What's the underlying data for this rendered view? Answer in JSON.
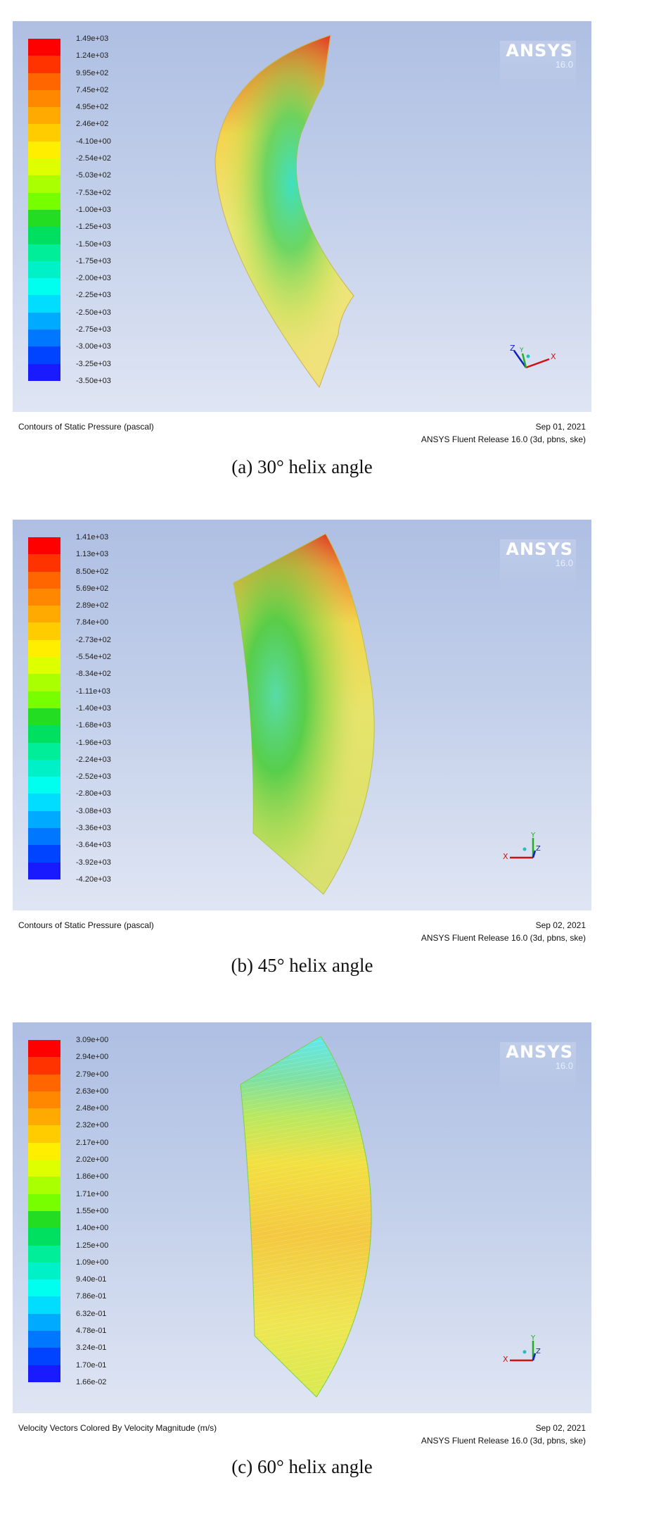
{
  "brand": {
    "name": "ANSYS",
    "version": "16.0"
  },
  "legend_colors": [
    "#ff0000",
    "#ff3300",
    "#ff6600",
    "#ff8800",
    "#ffaa00",
    "#ffcc00",
    "#ffee00",
    "#ddff00",
    "#aaff00",
    "#77ff00",
    "#22dd22",
    "#00e060",
    "#00ee99",
    "#00f0c8",
    "#00ffee",
    "#00ddff",
    "#00aaff",
    "#0077ff",
    "#0044ff",
    "#1a1aff"
  ],
  "panels": [
    {
      "id": "a",
      "legend": [
        "1.49e+03",
        "1.24e+03",
        "9.95e+02",
        "7.45e+02",
        "4.95e+02",
        "2.46e+02",
        "-4.10e+00",
        "-2.54e+02",
        "-5.03e+02",
        "-7.53e+02",
        "-1.00e+03",
        "-1.25e+03",
        "-1.50e+03",
        "-1.75e+03",
        "-2.00e+03",
        "-2.25e+03",
        "-2.50e+03",
        "-2.75e+03",
        "-3.00e+03",
        "-3.25e+03",
        "-3.50e+03"
      ],
      "footer_left": "Contours of Static Pressure (pascal)",
      "footer_date": "Sep 01, 2021",
      "footer_release": "ANSYS Fluent Release 16.0 (3d, pbns, ske)",
      "caption": "(a) 30° helix angle"
    },
    {
      "id": "b",
      "legend": [
        "1.41e+03",
        "1.13e+03",
        "8.50e+02",
        "5.69e+02",
        "2.89e+02",
        "7.84e+00",
        "-2.73e+02",
        "-5.54e+02",
        "-8.34e+02",
        "-1.11e+03",
        "-1.40e+03",
        "-1.68e+03",
        "-1.96e+03",
        "-2.24e+03",
        "-2.52e+03",
        "-2.80e+03",
        "-3.08e+03",
        "-3.36e+03",
        "-3.64e+03",
        "-3.92e+03",
        "-4.20e+03"
      ],
      "footer_left": "Contours of Static Pressure (pascal)",
      "footer_date": "Sep 02, 2021",
      "footer_release": "ANSYS Fluent Release 16.0 (3d, pbns, ske)",
      "caption": "(b) 45° helix angle"
    },
    {
      "id": "c",
      "legend": [
        "3.09e+00",
        "2.94e+00",
        "2.79e+00",
        "2.63e+00",
        "2.48e+00",
        "2.32e+00",
        "2.17e+00",
        "2.02e+00",
        "1.86e+00",
        "1.71e+00",
        "1.55e+00",
        "1.40e+00",
        "1.25e+00",
        "1.09e+00",
        "9.40e-01",
        "7.86e-01",
        "6.32e-01",
        "4.78e-01",
        "3.24e-01",
        "1.70e-01",
        "1.66e-02"
      ],
      "footer_left": "Velocity Vectors Colored By Velocity Magnitude (m/s)",
      "footer_date": "Sep 02, 2021",
      "footer_release": "ANSYS Fluent Release 16.0 (3d, pbns, ske)",
      "caption": "(c) 60° helix angle"
    }
  ]
}
